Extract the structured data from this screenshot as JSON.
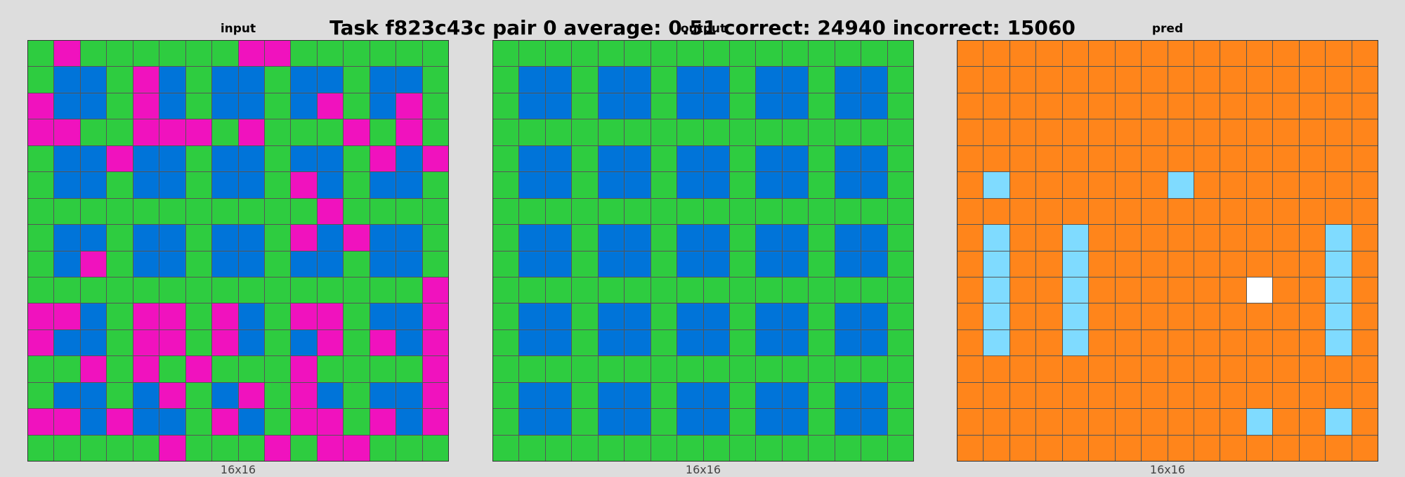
{
  "title": "Task f823c43c pair 0 average: 0.51 correct: 24940 incorrect: 15060",
  "colors": {
    "G": "#2ecc40",
    "B": "#0074d9",
    "M": "#f012be",
    "O": "#ff851b",
    "C": "#7fdbff",
    "W": "#ffffff"
  },
  "panels": [
    {
      "title": "input",
      "caption": "16x16",
      "grid": [
        "GMGGGGGGMMGGGGGG",
        "GBBGMBGBBGBBGBBG",
        "MBBGMBGBBGBMGBMG",
        "MMGGMMMGMGGGMGMG",
        "GBBMBBGBBGBBGMBM",
        "GBBGBBGBBGMBGBBG",
        "GGGGGGGGGGGMGGGG",
        "GBBGBBGBBGMBMBBG",
        "GBMGBBGBBGBBGBBG",
        "GGGGGGGGGGGGGGGM",
        "MMBGMMGMBGMMGBBM",
        "MBBGMMGMBGBMGMBM",
        "GGMGMGMGGGMGGGGM",
        "GBBGBMGBMGMBGBBM",
        "MMBMBBGMBGMMGMBM",
        "GGGGGMGGGMGMMGGG"
      ]
    },
    {
      "title": "output",
      "caption": "16x16",
      "grid": [
        "GGGGGGGGGGGGGGGG",
        "GBBGBBGBBGBBGBBG",
        "GBBGBBGBBGBBGBBG",
        "GGGGGGGGGGGGGGGG",
        "GBBGBBGBBGBBGBBG",
        "GBBGBBGBBGBBGBBG",
        "GGGGGGGGGGGGGGGG",
        "GBBGBBGBBGBBGBBG",
        "GBBGBBGBBGBBGBBG",
        "GGGGGGGGGGGGGGGG",
        "GBBGBBGBBGBBGBBG",
        "GBBGBBGBBGBBGBBG",
        "GGGGGGGGGGGGGGGG",
        "GBBGBBGBBGBBGBBG",
        "GBBGBBGBBGBBGBBG",
        "GGGGGGGGGGGGGGGG"
      ]
    },
    {
      "title": "pred",
      "caption": "16x16",
      "grid": [
        "OOOOOOOOOOOOOOOO",
        "OOOOOOOOOOOOOOOO",
        "OOOOOOOOOOOOOOOO",
        "OOOOOOOOOOOOOOOO",
        "OOOOOOOOOOOOOOOO",
        "OCOOOOOOCOOOOOOO",
        "OOOOOOOOOOOOOOOO",
        "OCOOCOOOOOOOOOCO",
        "OCOOCOOOOOOOOOCO",
        "OCOOCOOOOOOWOOCO",
        "OCOOCOOOOOOOOOCO",
        "OCOOCOOOOOOOOOCO",
        "OOOOOOOOOOOOOOOO",
        "OOOOOOOOOOOOOOOO",
        "OOOOOOOOOOOCOOCO",
        "OOOOOOOOOOOOOOOO"
      ]
    }
  ]
}
